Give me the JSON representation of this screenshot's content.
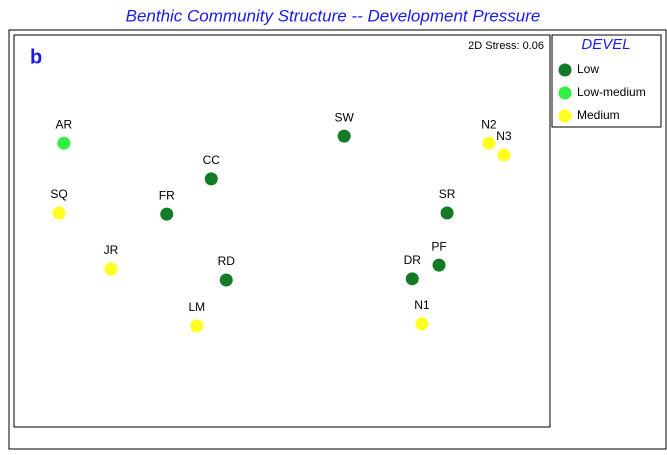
{
  "chart_data": {
    "type": "scatter",
    "title": "Benthic Community Structure -- Development Pressure",
    "panel_label": "b",
    "annotation": "2D Stress: 0.06",
    "legend_title": "DEVEL",
    "xlim": [
      0,
      100
    ],
    "ylim": [
      0,
      100
    ],
    "series": [
      {
        "name": "Low",
        "color": "#137a25",
        "labels": [
          "FR",
          "CC",
          "RD",
          "SW",
          "SR",
          "PF",
          "DR"
        ],
        "x": [
          28.5,
          36.8,
          39.6,
          61.6,
          80.8,
          79.3,
          74.3
        ],
        "y": [
          54.3,
          63.3,
          37.5,
          74.2,
          54.6,
          41.3,
          37.8
        ]
      },
      {
        "name": "Low-medium",
        "color": "#33ee44",
        "labels": [
          "AR"
        ],
        "x": [
          9.3
        ],
        "y": [
          72.4
        ]
      },
      {
        "name": "Medium",
        "color": "#ffff22",
        "labels": [
          "SQ",
          "JR",
          "LM",
          "N2",
          "N3",
          "N1"
        ],
        "x": [
          8.4,
          18.1,
          34.1,
          88.6,
          91.4,
          76.1
        ],
        "y": [
          54.6,
          40.3,
          25.8,
          72.4,
          69.4,
          26.3
        ]
      }
    ]
  }
}
